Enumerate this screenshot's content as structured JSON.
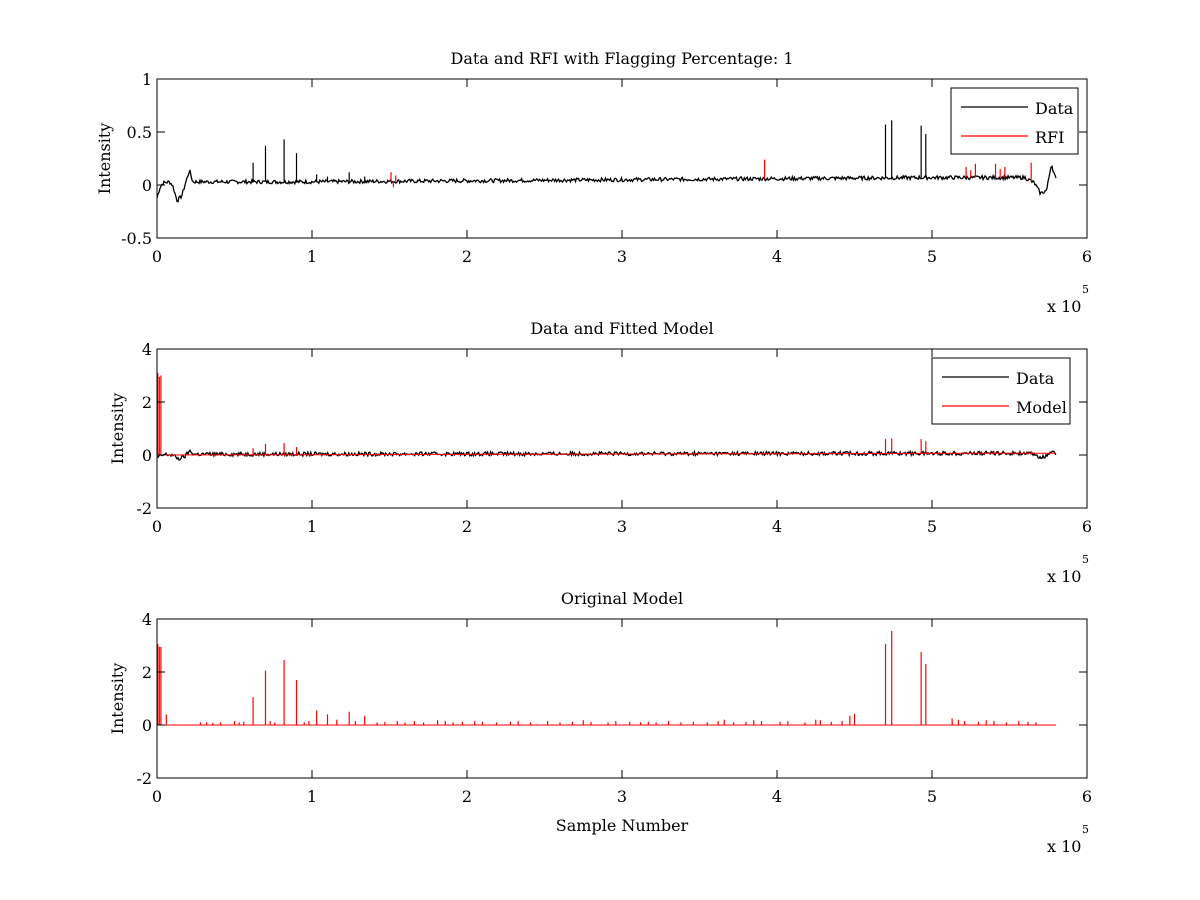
{
  "figure": {
    "exponent_label": "x 10",
    "exponent_power": "5"
  },
  "chart_data": [
    {
      "type": "line",
      "title": "Data and RFI with Flagging Percentage: 1",
      "xlabel": "",
      "ylabel": "Intensity",
      "xlim": [
        0,
        600000
      ],
      "ylim": [
        -0.5,
        1
      ],
      "xticks": [
        0,
        1,
        2,
        3,
        4,
        5,
        6
      ],
      "yticks": [
        -0.5,
        0,
        0.5,
        1
      ],
      "ytick_labels": [
        "-0.5",
        "0",
        "0.5",
        "1"
      ],
      "x_multiplier": 100000,
      "legend": {
        "position": "top-right",
        "entries": [
          "Data",
          "RFI"
        ]
      },
      "series": [
        {
          "name": "Data",
          "color": "#000000",
          "baseline": [
            [
              0,
              -0.12
            ],
            [
              2000,
              -0.02
            ],
            [
              4000,
              0.02
            ],
            [
              8000,
              0.03
            ],
            [
              10000,
              0.0
            ],
            [
              13000,
              -0.15
            ],
            [
              16000,
              -0.1
            ],
            [
              19000,
              0.05
            ],
            [
              21000,
              0.14
            ],
            [
              23000,
              0.03
            ],
            [
              50000,
              0.03
            ],
            [
              100000,
              0.03
            ],
            [
              200000,
              0.04
            ],
            [
              300000,
              0.05
            ],
            [
              400000,
              0.06
            ],
            [
              500000,
              0.07
            ],
            [
              560000,
              0.07
            ],
            [
              566000,
              0.02
            ],
            [
              570000,
              -0.08
            ],
            [
              574000,
              -0.05
            ],
            [
              577000,
              0.2
            ],
            [
              580000,
              0.05
            ]
          ],
          "spikes": [
            [
              62000,
              0.21
            ],
            [
              70000,
              0.37
            ],
            [
              82000,
              0.43
            ],
            [
              90000,
              0.3
            ],
            [
              103000,
              0.1
            ],
            [
              110000,
              0.08
            ],
            [
              124000,
              0.12
            ],
            [
              134000,
              0.08
            ],
            [
              470000,
              0.57
            ],
            [
              474000,
              0.61
            ],
            [
              493000,
              0.56
            ],
            [
              496000,
              0.48
            ]
          ]
        },
        {
          "name": "RFI",
          "color": "#ff0000",
          "spikes": [
            [
              151000,
              0.12
            ],
            [
              152500,
              -0.02
            ],
            [
              154000,
              0.09
            ],
            [
              392000,
              0.24
            ],
            [
              522000,
              0.17
            ],
            [
              525000,
              0.14
            ],
            [
              528000,
              0.2
            ],
            [
              541000,
              0.2
            ],
            [
              544000,
              0.15
            ],
            [
              547000,
              0.17
            ],
            [
              564000,
              0.21
            ]
          ]
        }
      ]
    },
    {
      "type": "line",
      "title": "Data and Fitted Model",
      "xlabel": "",
      "ylabel": "Intensity",
      "xlim": [
        0,
        600000
      ],
      "ylim": [
        -2,
        4
      ],
      "xticks": [
        0,
        1,
        2,
        3,
        4,
        5,
        6
      ],
      "yticks": [
        -2,
        0,
        2,
        4
      ],
      "ytick_labels": [
        "-2",
        "0",
        "2",
        "4"
      ],
      "x_multiplier": 100000,
      "legend": {
        "position": "top-right",
        "entries": [
          "Data",
          "Model"
        ]
      },
      "series": [
        {
          "name": "Data",
          "color": "#000000",
          "baseline": [
            [
              0,
              -0.1
            ],
            [
              5000,
              0.02
            ],
            [
              10000,
              0.0
            ],
            [
              14000,
              -0.15
            ],
            [
              18000,
              -0.05
            ],
            [
              21000,
              0.15
            ],
            [
              24000,
              0.03
            ],
            [
              300000,
              0.05
            ],
            [
              560000,
              0.07
            ],
            [
              566000,
              0.0
            ],
            [
              570000,
              -0.08
            ],
            [
              574000,
              -0.05
            ],
            [
              577000,
              0.18
            ],
            [
              580000,
              0.05
            ]
          ],
          "spikes": []
        },
        {
          "name": "Model",
          "color": "#ff0000",
          "baseline": [
            [
              0,
              0.0
            ],
            [
              580000,
              0.07
            ]
          ],
          "spikes": [
            [
              500,
              3.1
            ],
            [
              1500,
              2.95
            ],
            [
              2500,
              3.0
            ],
            [
              62000,
              0.25
            ],
            [
              70000,
              0.42
            ],
            [
              82000,
              0.45
            ],
            [
              90000,
              0.3
            ],
            [
              470000,
              0.6
            ],
            [
              474000,
              0.62
            ],
            [
              493000,
              0.6
            ],
            [
              496000,
              0.52
            ],
            [
              540000,
              0.15
            ],
            [
              564000,
              0.15
            ]
          ]
        }
      ]
    },
    {
      "type": "line",
      "title": "Original Model",
      "xlabel": "Sample Number",
      "ylabel": "Intensity",
      "xlim": [
        0,
        600000
      ],
      "ylim": [
        -2,
        4
      ],
      "xticks": [
        0,
        1,
        2,
        3,
        4,
        5,
        6
      ],
      "yticks": [
        -2,
        0,
        2,
        4
      ],
      "ytick_labels": [
        "-2",
        "0",
        "2",
        "4"
      ],
      "x_multiplier": 100000,
      "legend": null,
      "series": [
        {
          "name": "Original Model",
          "color": "#ff0000",
          "baseline": [
            [
              0,
              0.0
            ],
            [
              580000,
              0.0
            ]
          ],
          "spikes": [
            [
              500,
              3.05
            ],
            [
              1500,
              2.95
            ],
            [
              2500,
              2.95
            ],
            [
              6000,
              0.4
            ],
            [
              28000,
              0.1
            ],
            [
              32000,
              0.1
            ],
            [
              36000,
              0.08
            ],
            [
              41000,
              0.1
            ],
            [
              50000,
              0.15
            ],
            [
              53000,
              0.1
            ],
            [
              56000,
              0.12
            ],
            [
              62000,
              1.05
            ],
            [
              70000,
              2.05
            ],
            [
              73000,
              0.15
            ],
            [
              76000,
              0.1
            ],
            [
              82000,
              2.45
            ],
            [
              90000,
              1.7
            ],
            [
              95000,
              0.1
            ],
            [
              98000,
              0.15
            ],
            [
              103000,
              0.55
            ],
            [
              110000,
              0.4
            ],
            [
              116000,
              0.2
            ],
            [
              124000,
              0.5
            ],
            [
              128000,
              0.15
            ],
            [
              134000,
              0.35
            ],
            [
              142000,
              0.1
            ],
            [
              147000,
              0.12
            ],
            [
              155000,
              0.15
            ],
            [
              160000,
              0.1
            ],
            [
              166000,
              0.15
            ],
            [
              172000,
              0.1
            ],
            [
              181000,
              0.18
            ],
            [
              186000,
              0.15
            ],
            [
              191000,
              0.1
            ],
            [
              197000,
              0.12
            ],
            [
              205000,
              0.15
            ],
            [
              210000,
              0.12
            ],
            [
              219000,
              0.1
            ],
            [
              228000,
              0.12
            ],
            [
              233000,
              0.15
            ],
            [
              241000,
              0.1
            ],
            [
              252000,
              0.15
            ],
            [
              260000,
              0.1
            ],
            [
              268000,
              0.12
            ],
            [
              275000,
              0.18
            ],
            [
              280000,
              0.12
            ],
            [
              291000,
              0.1
            ],
            [
              296000,
              0.15
            ],
            [
              305000,
              0.12
            ],
            [
              312000,
              0.1
            ],
            [
              317000,
              0.12
            ],
            [
              322000,
              0.1
            ],
            [
              330000,
              0.15
            ],
            [
              338000,
              0.1
            ],
            [
              346000,
              0.12
            ],
            [
              355000,
              0.1
            ],
            [
              362000,
              0.15
            ],
            [
              366000,
              0.2
            ],
            [
              372000,
              0.1
            ],
            [
              380000,
              0.12
            ],
            [
              385000,
              0.18
            ],
            [
              390000,
              0.15
            ],
            [
              402000,
              0.12
            ],
            [
              407000,
              0.15
            ],
            [
              418000,
              0.1
            ],
            [
              425000,
              0.2
            ],
            [
              428000,
              0.18
            ],
            [
              435000,
              0.12
            ],
            [
              442000,
              0.15
            ],
            [
              447000,
              0.35
            ],
            [
              450000,
              0.42
            ],
            [
              470000,
              3.05
            ],
            [
              474000,
              3.55
            ],
            [
              493000,
              2.75
            ],
            [
              496000,
              2.3
            ],
            [
              513000,
              0.25
            ],
            [
              517000,
              0.2
            ],
            [
              521000,
              0.15
            ],
            [
              530000,
              0.12
            ],
            [
              535000,
              0.18
            ],
            [
              540000,
              0.15
            ],
            [
              548000,
              0.1
            ],
            [
              556000,
              0.15
            ],
            [
              562000,
              0.12
            ],
            [
              567000,
              0.1
            ]
          ]
        }
      ]
    }
  ]
}
